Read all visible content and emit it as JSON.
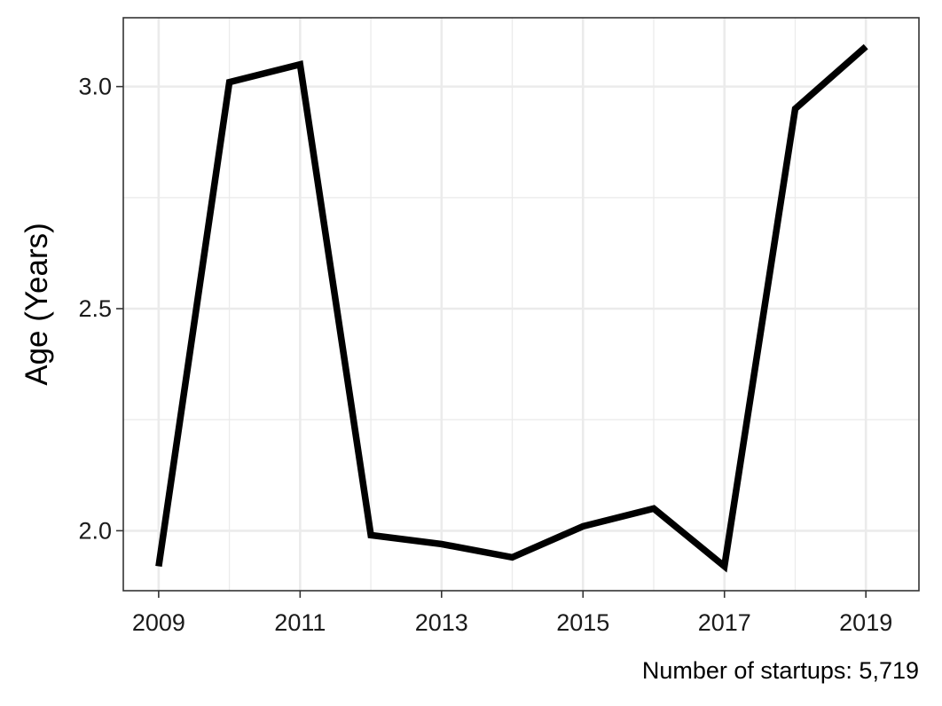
{
  "chart_data": {
    "type": "line",
    "title": "",
    "xlabel": "",
    "ylabel": "Age (Years)",
    "caption": "Number of startups: 5,719",
    "x": [
      2009,
      2010,
      2011,
      2012,
      2013,
      2014,
      2015,
      2016,
      2017,
      2018,
      2019
    ],
    "series": [
      {
        "values": [
          1.92,
          3.01,
          3.05,
          1.99,
          1.97,
          1.94,
          2.01,
          2.05,
          1.92,
          2.95,
          3.09
        ]
      }
    ],
    "xlim": [
      2008.5,
      2019.75
    ],
    "ylim": [
      1.865,
      3.155
    ],
    "x_ticks": [
      2009,
      2011,
      2013,
      2015,
      2017,
      2019
    ],
    "x_tick_labels": [
      "2009",
      "2011",
      "2013",
      "2015",
      "2017",
      "2019"
    ],
    "y_ticks": [
      2.0,
      2.5,
      3.0
    ],
    "y_tick_labels": [
      "2.0",
      "2.5",
      "3.0"
    ],
    "grid": true,
    "line_color": "#000000",
    "grid_color": "#ebebeb"
  }
}
